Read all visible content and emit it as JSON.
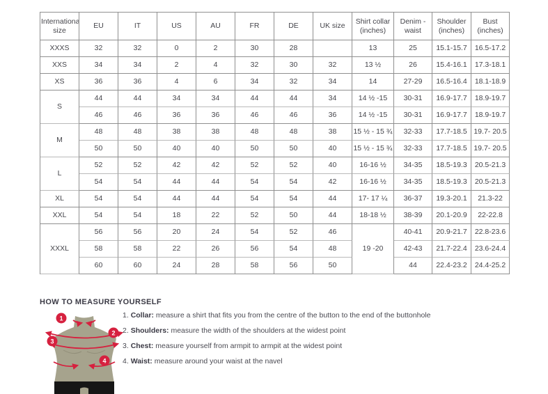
{
  "table": {
    "columns": [
      "International size",
      "EU",
      "IT",
      "US",
      "AU",
      "FR",
      "DE",
      "UK size",
      "Shirt collar (inches)",
      "Denim - waist",
      "Shoulder (inches)",
      "Bust (inches)"
    ],
    "rows": [
      {
        "cells": [
          "XXXS",
          "32",
          "32",
          "0",
          "2",
          "30",
          "28",
          "",
          "13",
          "25",
          "15.1-15.7",
          "16.5-17.2"
        ]
      },
      {
        "cells": [
          "XXS",
          "34",
          "34",
          "2",
          "4",
          "32",
          "30",
          "32",
          "13 ½",
          "26",
          "15.4-16.1",
          "17.3-18.1"
        ]
      },
      {
        "cells": [
          "XS",
          "36",
          "36",
          "4",
          "6",
          "34",
          "32",
          "34",
          "14",
          "27-29",
          "16.5-16.4",
          "18.1-18.9"
        ]
      },
      {
        "light_bottom": true,
        "cells": [
          {
            "v": "S",
            "rs": 2
          },
          "44",
          "44",
          "34",
          "34",
          "44",
          "44",
          "34",
          "14 ½ -15",
          "30-31",
          "16.9-17.7",
          "18.9-19.7"
        ]
      },
      {
        "cells": [
          "46",
          "46",
          "36",
          "36",
          "46",
          "46",
          "36",
          "14 ½ -15",
          "30-31",
          "16.9-17.7",
          "18.9-19.7"
        ]
      },
      {
        "light_bottom": true,
        "cells": [
          {
            "v": "M",
            "rs": 2
          },
          "48",
          "48",
          "38",
          "38",
          "48",
          "48",
          "38",
          "15 ½ - 15 ¾",
          "32-33",
          "17.7-18.5",
          "19.7- 20.5"
        ]
      },
      {
        "cells": [
          "50",
          "50",
          "40",
          "40",
          "50",
          "50",
          "40",
          "15 ½ - 15 ¾",
          "32-33",
          "17.7-18.5",
          "19.7- 20.5"
        ]
      },
      {
        "light_bottom": true,
        "cells": [
          {
            "v": "L",
            "rs": 2
          },
          "52",
          "52",
          "42",
          "42",
          "52",
          "52",
          "40",
          "16-16 ½",
          "34-35",
          "18.5-19.3",
          "20.5-21.3"
        ]
      },
      {
        "cells": [
          "54",
          "54",
          "44",
          "44",
          "54",
          "54",
          "42",
          "16-16 ½",
          "34-35",
          "18.5-19.3",
          "20.5-21.3"
        ]
      },
      {
        "cells": [
          "XL",
          "54",
          "54",
          "44",
          "44",
          "54",
          "54",
          "44",
          "17- 17 ¼",
          "36-37",
          "19.3-20.1",
          "21.3-22"
        ]
      },
      {
        "cells": [
          "XXL",
          "54",
          "54",
          "18",
          "22",
          "52",
          "50",
          "44",
          "18-18 ½",
          "38-39",
          "20.1-20.9",
          "22-22.8"
        ]
      },
      {
        "light_bottom": true,
        "cells": [
          {
            "v": "XXXL",
            "rs": 3
          },
          "56",
          "56",
          "20",
          "24",
          "54",
          "52",
          "46",
          {
            "v": "19 -20",
            "rs": 3
          },
          "40-41",
          "20.9-21.7",
          "22.8-23.6"
        ]
      },
      {
        "light_bottom": true,
        "cells": [
          "58",
          "58",
          "22",
          "26",
          "56",
          "54",
          "48",
          "42-43",
          "21.7-22.4",
          "23.6-24.4"
        ]
      },
      {
        "cells": [
          "60",
          "60",
          "24",
          "28",
          "58",
          "56",
          "50",
          "44",
          "22.4-23.2",
          "24.4-25.2"
        ]
      }
    ]
  },
  "measure": {
    "title": "HOW TO MEASURE YOURSELF",
    "items": [
      {
        "num": "1.",
        "label": "Collar:",
        "text": "measure a shirt that fits you from the centre of the button to the end of the buttonhole"
      },
      {
        "num": "2.",
        "label": "Shoulders:",
        "text": "measure the width of the shoulders at the widest point"
      },
      {
        "num": "3.",
        "label": "Chest:",
        "text": "measure yourself from armpit to armpit at the widest point"
      },
      {
        "num": "4.",
        "label": "Waist:",
        "text": "measure around your waist at the navel"
      }
    ],
    "markers": [
      "1",
      "2",
      "3",
      "4"
    ]
  },
  "colors": {
    "accent_red": "#d6213f",
    "mannequin": "#a6a38d",
    "shorts": "#161616",
    "table_border": "#8f8f8f",
    "table_border_light": "#b9b9b9",
    "text": "#45454b"
  }
}
